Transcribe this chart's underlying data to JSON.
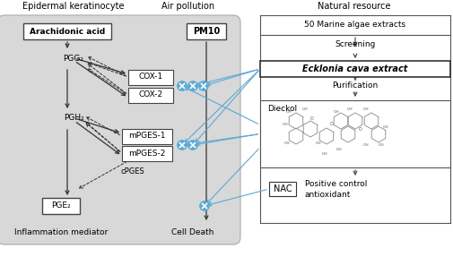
{
  "title_epidermal": "Epidermal keratinocyte",
  "title_air": "Air pollution",
  "title_natural": "Natural resource",
  "box_arachidonic": "Arachidonic acid",
  "box_cox1": "COX-1",
  "box_cox2": "COX-2",
  "box_pgg2": "PGG₂",
  "box_pgh2": "PGH₂",
  "box_mpges1": "mPGES-1",
  "box_mpges2": "mPGES-2",
  "box_cpges": "cPGES",
  "box_pge2": "PGE₂",
  "box_pm10": "PM10",
  "box_ecklonia": "Ecklonia cava extract",
  "box_dieckol": "Dieckol",
  "box_nac": "NAC",
  "label_50marine": "50 Marine algae extracts",
  "label_screening": "Screening",
  "label_purification": "Purification",
  "label_inflammation": "Inflammation mediator",
  "label_celldeath": "Cell Death",
  "label_positive": "Positive control",
  "label_antioxidant": "antioxidant",
  "blue": "#5baad4",
  "dark": "#333333",
  "gray_bg": "#d8d8d8",
  "gray_edge": "#aaaaaa"
}
